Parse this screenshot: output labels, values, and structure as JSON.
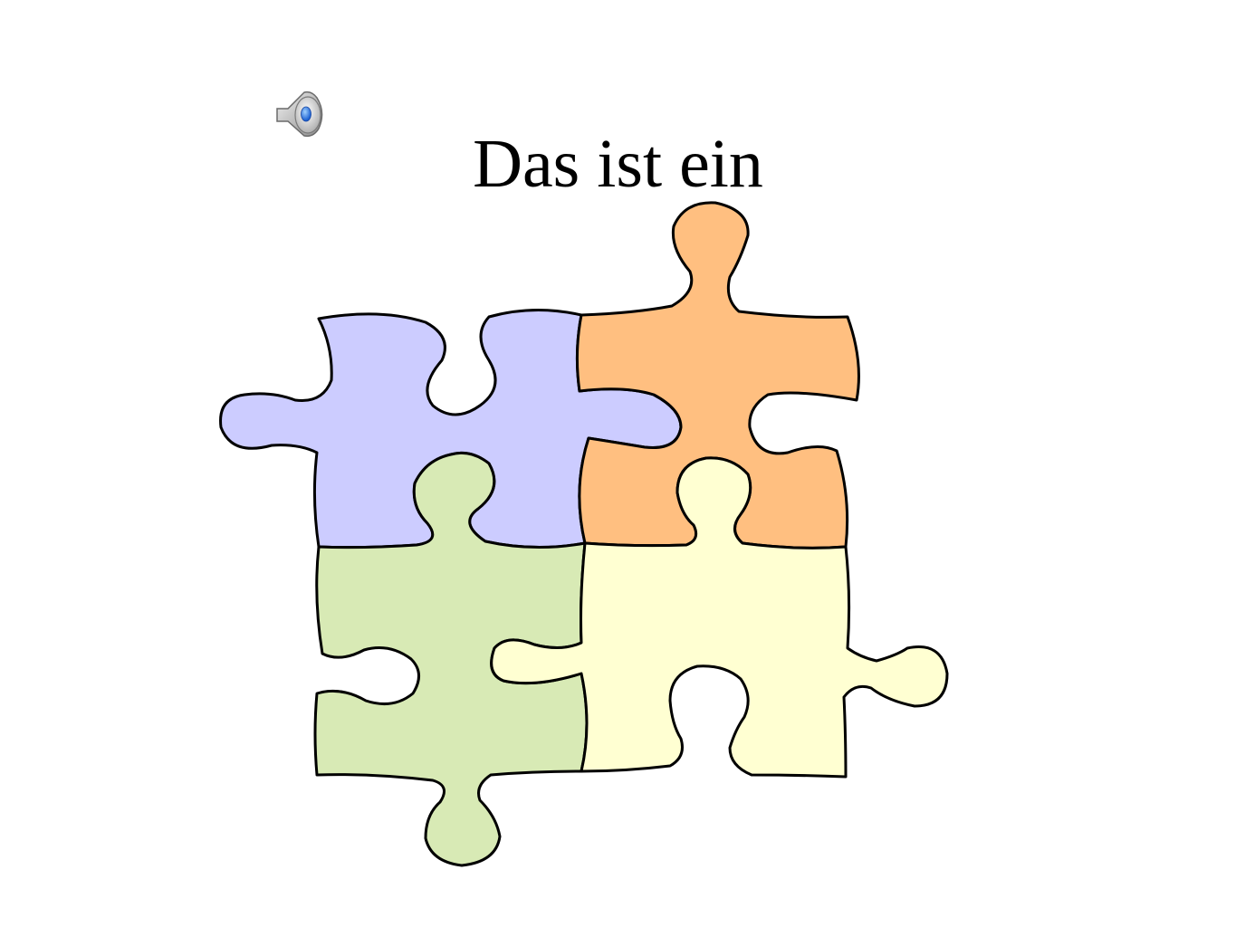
{
  "slide": {
    "title": "Das ist ein"
  },
  "audio": {
    "icon": "speaker-icon"
  },
  "puzzle": {
    "pieces": [
      {
        "name": "puzzle-piece-top-left",
        "color": "#ccccff"
      },
      {
        "name": "puzzle-piece-top-right",
        "color": "#ffbf80"
      },
      {
        "name": "puzzle-piece-bottom-left",
        "color": "#d8eab5"
      },
      {
        "name": "puzzle-piece-bottom-right",
        "color": "#ffffd2"
      }
    ]
  }
}
